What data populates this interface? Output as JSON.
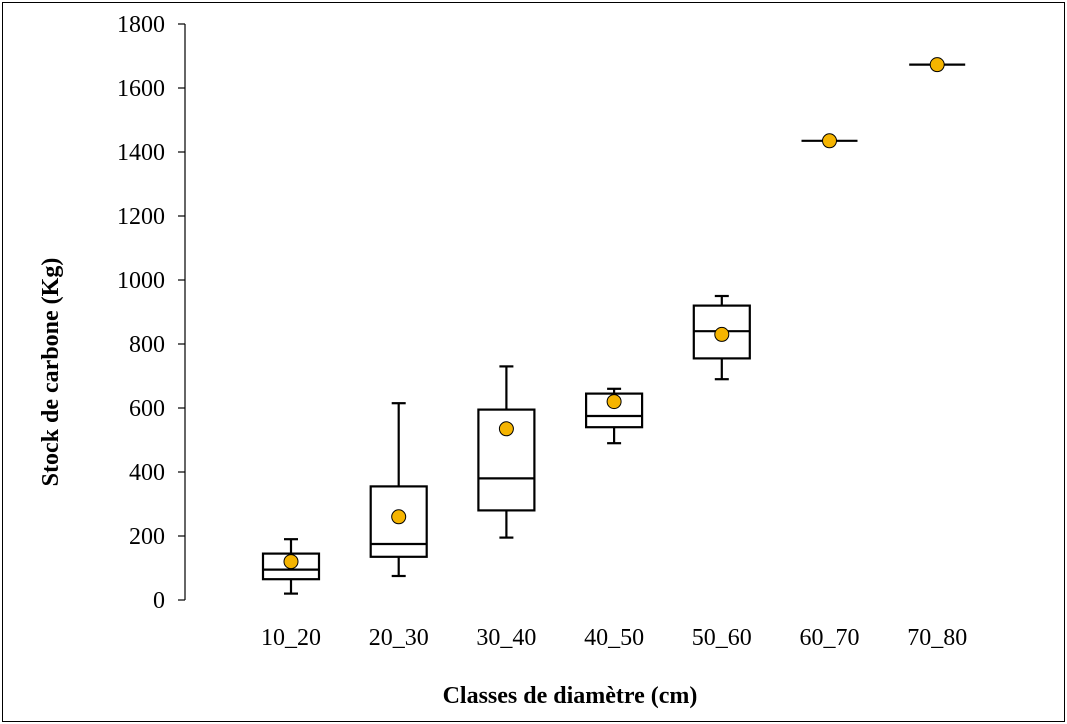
{
  "chart_data": {
    "type": "box",
    "title": "",
    "xlabel": "Classes de diamètre (cm)",
    "ylabel": "Stock de carbone (Kg)",
    "ylim": [
      0,
      1800
    ],
    "yticks": [
      0,
      200,
      400,
      600,
      800,
      1000,
      1200,
      1400,
      1600,
      1800
    ],
    "categories": [
      "10_20",
      "20_30",
      "30_40",
      "40_50",
      "50_60",
      "60_70",
      "70_80"
    ],
    "boxes": [
      {
        "category": "10_20",
        "min": 20,
        "q1": 65,
        "median": 95,
        "q3": 145,
        "max": 190,
        "mean": 120
      },
      {
        "category": "20_30",
        "min": 75,
        "q1": 135,
        "median": 175,
        "q3": 355,
        "max": 615,
        "mean": 260
      },
      {
        "category": "30_40",
        "min": 195,
        "q1": 280,
        "median": 380,
        "q3": 595,
        "max": 730,
        "mean": 535
      },
      {
        "category": "40_50",
        "min": 490,
        "q1": 540,
        "median": 575,
        "q3": 645,
        "max": 660,
        "mean": 620
      },
      {
        "category": "50_60",
        "min": 690,
        "q1": 755,
        "median": 840,
        "q3": 920,
        "max": 950,
        "mean": 830
      },
      {
        "category": "60_70",
        "min": 1435,
        "q1": 1435,
        "median": 1435,
        "q3": 1435,
        "max": 1435,
        "mean": 1435
      },
      {
        "category": "70_80",
        "min": 1673,
        "q1": 1673,
        "median": 1673,
        "q3": 1673,
        "max": 1673,
        "mean": 1673
      }
    ],
    "grid": false,
    "legend": "none",
    "colors": {
      "box_stroke": "#000000",
      "mean_fill": "#F5B400",
      "mean_stroke": "#000000"
    }
  }
}
